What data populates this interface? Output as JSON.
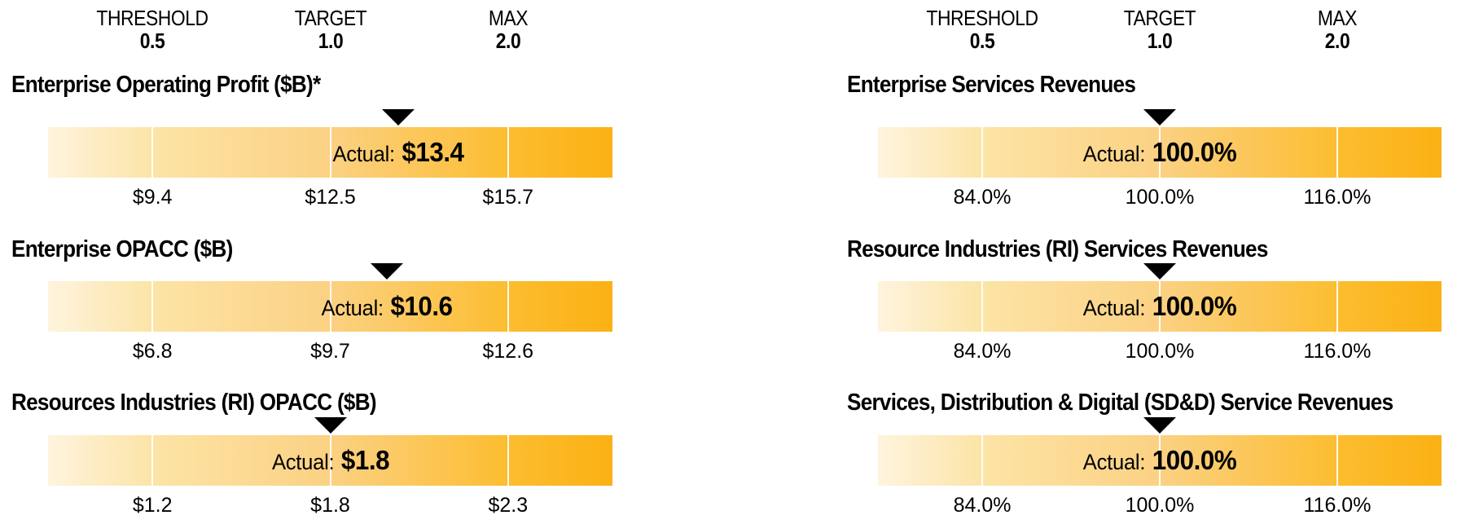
{
  "colors": {
    "background": "#FFFFFF",
    "text": "#000000",
    "marker": "#000000",
    "bar_gradient": [
      "#FEF4DE",
      "#FCE4A6",
      "#FBD183",
      "#FCBD30",
      "#FBB113"
    ],
    "bar_divider": "rgba(255,255,255,0.92)"
  },
  "chart_data": {
    "type": "bar",
    "subtype": "incentive-payout-scale",
    "payout_multipliers": {
      "threshold": 0.5,
      "target": 1.0,
      "max": 2.0
    },
    "groups": [
      {
        "scale_header": [
          {
            "label": "THRESHOLD",
            "value": "0.5"
          },
          {
            "label": "TARGET",
            "value": "1.0"
          },
          {
            "label": "MAX",
            "value": "2.0"
          }
        ],
        "metrics": [
          {
            "title": "Enterprise Operating Profit ($B)*",
            "actual_prefix": "Actual:",
            "actual_display": "$13.4",
            "actual_numeric": 13.4,
            "ticks": [
              "$9.4",
              "$12.5",
              "$15.7"
            ],
            "ticks_numeric": [
              9.4,
              12.5,
              15.7
            ],
            "unit": "$B",
            "marker_frac": 0.62
          },
          {
            "title": "Enterprise OPACC ($B)",
            "actual_prefix": "Actual:",
            "actual_display": "$10.6",
            "actual_numeric": 10.6,
            "ticks": [
              "$6.8",
              "$9.7",
              "$12.6"
            ],
            "ticks_numeric": [
              6.8,
              9.7,
              12.6
            ],
            "unit": "$B",
            "marker_frac": 0.6
          },
          {
            "title": "Resources Industries (RI) OPACC ($B)",
            "actual_prefix": "Actual:",
            "actual_display": "$1.8",
            "actual_numeric": 1.8,
            "ticks": [
              "$1.2",
              "$1.8",
              "$2.3"
            ],
            "ticks_numeric": [
              1.2,
              1.8,
              2.3
            ],
            "unit": "$B",
            "marker_frac": 0.5
          }
        ]
      },
      {
        "scale_header": [
          {
            "label": "THRESHOLD",
            "value": "0.5"
          },
          {
            "label": "TARGET",
            "value": "1.0"
          },
          {
            "label": "MAX",
            "value": "2.0"
          }
        ],
        "metrics": [
          {
            "title": "Enterprise Services Revenues",
            "actual_prefix": "Actual:",
            "actual_display": "100.0%",
            "actual_numeric": 100.0,
            "ticks": [
              "84.0%",
              "100.0%",
              "116.0%"
            ],
            "ticks_numeric": [
              84.0,
              100.0,
              116.0
            ],
            "unit": "%",
            "marker_frac": 0.5
          },
          {
            "title": "Resource Industries (RI) Services Revenues",
            "actual_prefix": "Actual:",
            "actual_display": "100.0%",
            "actual_numeric": 100.0,
            "ticks": [
              "84.0%",
              "100.0%",
              "116.0%"
            ],
            "ticks_numeric": [
              84.0,
              100.0,
              116.0
            ],
            "unit": "%",
            "marker_frac": 0.5
          },
          {
            "title": "Services, Distribution & Digital (SD&D) Service Revenues",
            "actual_prefix": "Actual:",
            "actual_display": "100.0%",
            "actual_numeric": 100.0,
            "ticks": [
              "84.0%",
              "100.0%",
              "116.0%"
            ],
            "ticks_numeric": [
              84.0,
              100.0,
              116.0
            ],
            "unit": "%",
            "marker_frac": 0.5
          }
        ]
      }
    ]
  }
}
